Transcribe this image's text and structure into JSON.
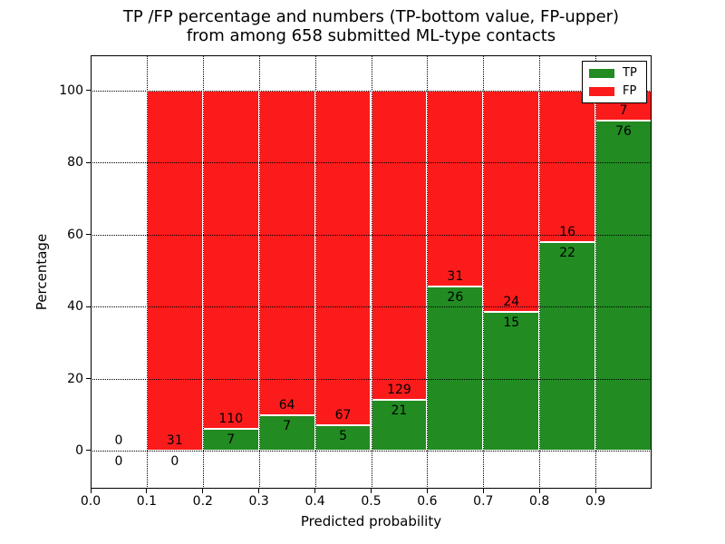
{
  "figure": {
    "title_line1": "TP /FP percentage and numbers (TP-bottom value, FP-upper)",
    "title_line2": "from among 658 submitted ML-type contacts",
    "background": "#ffffff"
  },
  "chart_data": {
    "type": "bar",
    "stacked": true,
    "title": "TP /FP percentage and numbers (TP-bottom value, FP-upper) from among 658 submitted ML-type contacts",
    "xlabel": "Predicted probability",
    "ylabel": "Percentage",
    "xlim": [
      0.0,
      1.0
    ],
    "ylim": [
      -10.6,
      109.8
    ],
    "xticks": [
      0.0,
      0.1,
      0.2,
      0.3,
      0.4,
      0.5,
      0.6,
      0.7,
      0.8,
      0.9
    ],
    "xtick_labels": [
      "0.0",
      "0.1",
      "0.2",
      "0.3",
      "0.4",
      "0.5",
      "0.6",
      "0.7",
      "0.8",
      "0.9"
    ],
    "yticks": [
      0,
      20,
      40,
      60,
      80,
      100
    ],
    "grid": true,
    "grid_style": "dotted",
    "total_contacts": 658,
    "colors": {
      "tp": "#228b22",
      "fp": "#fb1b1b"
    },
    "legend": {
      "position": "upper right",
      "entries": [
        {
          "label": "TP",
          "color": "#228b22"
        },
        {
          "label": "FP",
          "color": "#fb1b1b"
        }
      ]
    },
    "bins": [
      {
        "x_start": 0.0,
        "x_end": 0.1,
        "tp_count": 0,
        "fp_count": 0,
        "tp_pct": 0.0,
        "fp_pct": 0.0
      },
      {
        "x_start": 0.1,
        "x_end": 0.2,
        "tp_count": 0,
        "fp_count": 31,
        "tp_pct": 0.0,
        "fp_pct": 100.0
      },
      {
        "x_start": 0.2,
        "x_end": 0.3,
        "tp_count": 7,
        "fp_count": 110,
        "tp_pct": 5.98,
        "fp_pct": 94.02
      },
      {
        "x_start": 0.3,
        "x_end": 0.4,
        "tp_count": 7,
        "fp_count": 64,
        "tp_pct": 9.86,
        "fp_pct": 90.14
      },
      {
        "x_start": 0.4,
        "x_end": 0.5,
        "tp_count": 5,
        "fp_count": 67,
        "tp_pct": 6.94,
        "fp_pct": 93.06
      },
      {
        "x_start": 0.5,
        "x_end": 0.6,
        "tp_count": 21,
        "fp_count": 129,
        "tp_pct": 14.0,
        "fp_pct": 86.0
      },
      {
        "x_start": 0.6,
        "x_end": 0.7,
        "tp_count": 26,
        "fp_count": 31,
        "tp_pct": 45.61,
        "fp_pct": 54.39
      },
      {
        "x_start": 0.7,
        "x_end": 0.8,
        "tp_count": 15,
        "fp_count": 24,
        "tp_pct": 38.46,
        "fp_pct": 61.54
      },
      {
        "x_start": 0.8,
        "x_end": 0.9,
        "tp_count": 22,
        "fp_count": 16,
        "tp_pct": 57.89,
        "fp_pct": 42.11
      },
      {
        "x_start": 0.9,
        "x_end": 1.0,
        "tp_count": 76,
        "fp_count": 7,
        "tp_pct": 91.57,
        "fp_pct": 8.43
      }
    ]
  }
}
